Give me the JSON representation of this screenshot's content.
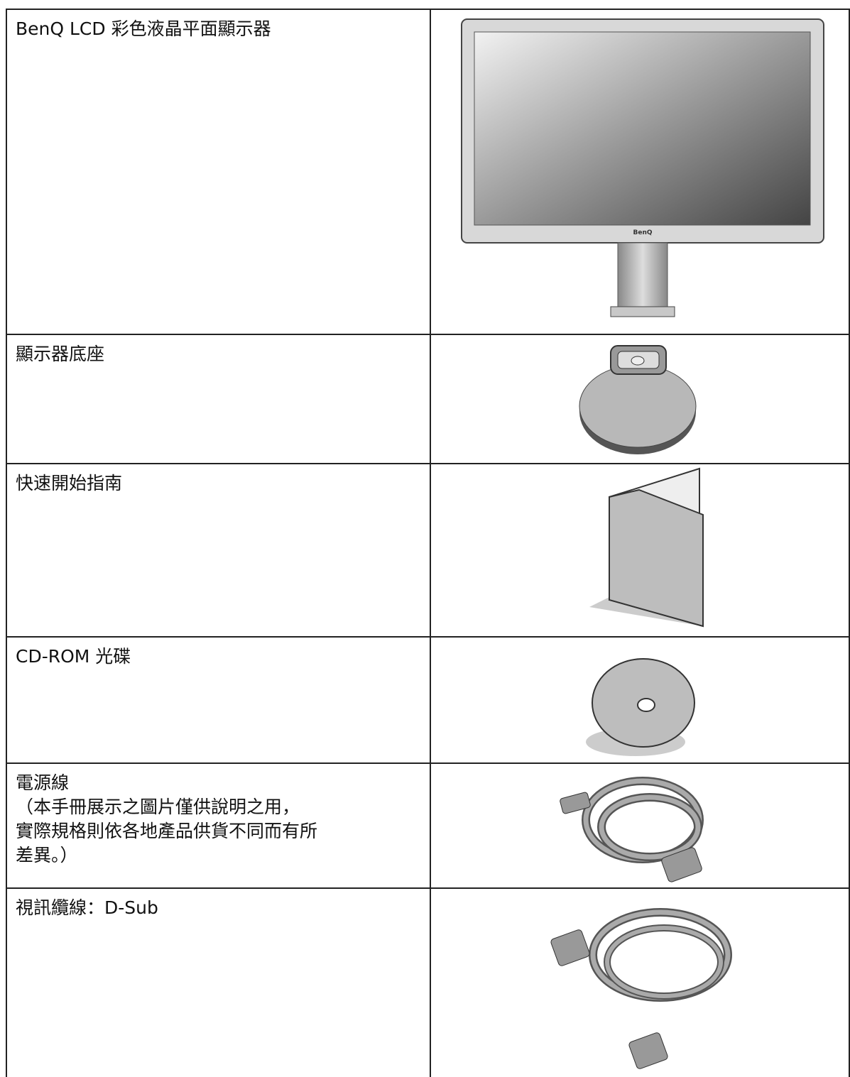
{
  "table": {
    "rows": [
      {
        "label": "BenQ LCD 彩色液晶平面顯示器",
        "image_text": "BenQ"
      },
      {
        "label": "顯示器底座"
      },
      {
        "label": "快速開始指南"
      },
      {
        "label": "CD-ROM 光碟"
      },
      {
        "label": "電源線",
        "note_lines": [
          "（本手冊展示之圖片僅供說明之用，",
          "實際規格則依各地產品供貨不同而有所",
          "差異。）"
        ]
      },
      {
        "label": "視訊纜線：D-Sub"
      }
    ]
  }
}
